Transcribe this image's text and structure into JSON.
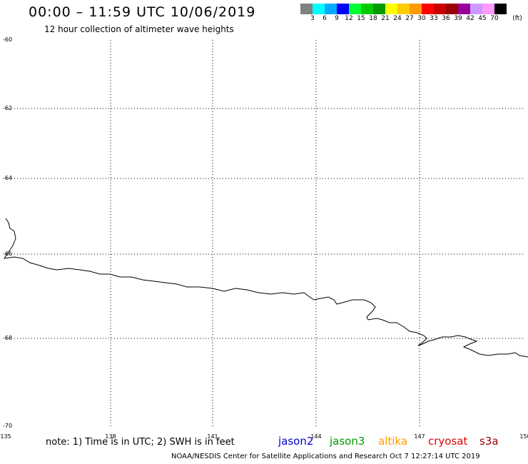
{
  "header": {
    "title": "00:00 – 11:59 UTC 10/06/2019",
    "subtitle": "12 hour collection of altimeter wave heights"
  },
  "colorbar": {
    "colors": [
      "#808080",
      "#00ffff",
      "#00aaff",
      "#0000ff",
      "#00ff33",
      "#00cc00",
      "#009900",
      "#ffff00",
      "#ffcc00",
      "#ff9900",
      "#ff0000",
      "#cc0000",
      "#990000",
      "#990099",
      "#cc99ff",
      "#ff99ff",
      "#000000"
    ],
    "labels": [
      "3",
      "6",
      "9",
      "12",
      "15",
      "18",
      "21",
      "24",
      "27",
      "30",
      "33",
      "36",
      "39",
      "42",
      "45",
      "70"
    ],
    "unit": "(ft)"
  },
  "axes": {
    "lat_labels": [
      "-60",
      "-62",
      "-64",
      "-66",
      "-68",
      "-70"
    ],
    "lon_labels": [
      "135",
      "138",
      "141",
      "144",
      "147",
      "150"
    ]
  },
  "footer": {
    "note": "note: 1) Time is in UTC; 2) SWH is in feet",
    "satellites": [
      {
        "name": "jason2",
        "color": "#0000cc"
      },
      {
        "name": "jason3",
        "color": "#009900"
      },
      {
        "name": "altika",
        "color": "#ff9900"
      },
      {
        "name": "cryosat",
        "color": "#dd0000"
      },
      {
        "name": "s3a",
        "color": "#990000"
      }
    ],
    "credit": "NOAA/NESDIS Center for Satellite Applications and Research    Oct  7 12:27:14 UTC 2019"
  }
}
